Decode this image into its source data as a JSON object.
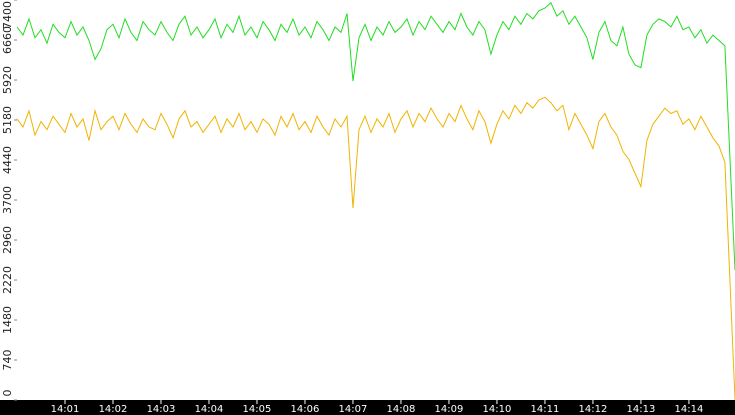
{
  "chart_data": {
    "type": "line",
    "x": [
      0,
      0.125,
      0.25,
      0.375,
      0.5,
      0.625,
      0.75,
      0.875,
      1,
      1.125,
      1.25,
      1.375,
      1.5,
      1.625,
      1.75,
      1.875,
      2,
      2.125,
      2.25,
      2.375,
      2.5,
      2.625,
      2.75,
      2.875,
      3,
      3.125,
      3.25,
      3.375,
      3.5,
      3.625,
      3.75,
      3.875,
      4,
      4.125,
      4.25,
      4.375,
      4.5,
      4.625,
      4.75,
      4.875,
      5,
      5.125,
      5.25,
      5.375,
      5.5,
      5.625,
      5.75,
      5.875,
      6,
      6.125,
      6.25,
      6.375,
      6.5,
      6.625,
      6.75,
      6.875,
      7,
      7.125,
      7.25,
      7.375,
      7.5,
      7.625,
      7.75,
      7.875,
      8,
      8.125,
      8.25,
      8.375,
      8.5,
      8.625,
      8.75,
      8.875,
      9,
      9.125,
      9.25,
      9.375,
      9.5,
      9.625,
      9.75,
      9.875,
      10,
      10.125,
      10.25,
      10.375,
      10.5,
      10.625,
      10.75,
      10.875,
      11,
      11.125,
      11.25,
      11.375,
      11.5,
      11.625,
      11.75,
      11.875,
      12,
      12.125,
      12.25,
      12.375,
      12.5,
      12.625,
      12.75,
      12.875,
      13,
      13.125,
      13.25,
      13.375,
      13.5,
      13.625,
      13.75,
      13.875,
      14,
      14.125,
      14.25,
      14.375,
      14.5,
      14.625,
      14.75,
      14.96
    ],
    "series": [
      {
        "color": "#22dd22",
        "values": [
          6900,
          6750,
          7050,
          6700,
          6850,
          6600,
          6950,
          6800,
          6700,
          7000,
          6750,
          6900,
          6650,
          6300,
          6500,
          6850,
          6950,
          6700,
          7050,
          6800,
          6650,
          7000,
          6850,
          6750,
          7000,
          6800,
          6650,
          6950,
          7100,
          6750,
          6900,
          6700,
          6850,
          7050,
          6700,
          6950,
          6800,
          7100,
          6750,
          6900,
          6700,
          7000,
          6850,
          6650,
          6950,
          6800,
          7050,
          6750,
          6900,
          6700,
          7000,
          6850,
          6650,
          6900,
          6800,
          7150,
          5900,
          6700,
          6950,
          6650,
          6900,
          6750,
          7000,
          6800,
          6900,
          7050,
          6750,
          7000,
          6850,
          7100,
          6950,
          6800,
          7000,
          6850,
          7150,
          6900,
          6750,
          7000,
          6850,
          6400,
          6750,
          7000,
          6850,
          7100,
          6950,
          7150,
          7050,
          7200,
          7250,
          7350,
          7100,
          7200,
          6950,
          7100,
          6900,
          6700,
          6300,
          6800,
          7000,
          6650,
          6550,
          6900,
          6400,
          6200,
          6150,
          6750,
          6950,
          7050,
          7000,
          6900,
          7100,
          6850,
          6900,
          6700,
          6850,
          6600,
          6750,
          6650,
          6550,
          2400
        ]
      },
      {
        "color": "#f0b400",
        "values": [
          5200,
          5050,
          5350,
          4900,
          5150,
          5000,
          5250,
          5100,
          4950,
          5300,
          5050,
          5200,
          4800,
          5350,
          5000,
          5150,
          5250,
          5000,
          5300,
          5100,
          4950,
          5200,
          5050,
          5000,
          5300,
          5100,
          4850,
          5200,
          5350,
          5050,
          5150,
          4950,
          5100,
          5250,
          4950,
          5200,
          5050,
          5300,
          5000,
          5150,
          4950,
          5200,
          5100,
          4900,
          5250,
          5050,
          5300,
          5000,
          5150,
          4950,
          5250,
          5050,
          4900,
          5200,
          5050,
          5250,
          3550,
          5000,
          5250,
          4950,
          5200,
          5050,
          5300,
          4950,
          5200,
          5350,
          5050,
          5300,
          5150,
          5400,
          5200,
          5050,
          5300,
          5150,
          5450,
          5200,
          5000,
          5350,
          5150,
          4750,
          5100,
          5350,
          5200,
          5450,
          5300,
          5500,
          5400,
          5550,
          5600,
          5500,
          5350,
          5450,
          5000,
          5300,
          5100,
          4900,
          4650,
          5150,
          5300,
          5050,
          4900,
          4600,
          4450,
          4200,
          3950,
          4800,
          5100,
          5250,
          5400,
          5300,
          5350,
          5100,
          5200,
          5000,
          5250,
          5050,
          4850,
          4700,
          4400,
          0
        ]
      }
    ],
    "xlim": [
      0,
      14.96
    ],
    "xticks": [
      {
        "value": 1,
        "label": "14:01"
      },
      {
        "value": 2,
        "label": "14:02"
      },
      {
        "value": 3,
        "label": "14:03"
      },
      {
        "value": 4,
        "label": "14:04"
      },
      {
        "value": 5,
        "label": "14:05"
      },
      {
        "value": 6,
        "label": "14:06"
      },
      {
        "value": 7,
        "label": "14:07"
      },
      {
        "value": 8,
        "label": "14:08"
      },
      {
        "value": 9,
        "label": "14:09"
      },
      {
        "value": 10,
        "label": "14:10"
      },
      {
        "value": 11,
        "label": "14:11"
      },
      {
        "value": 12,
        "label": "14:12"
      },
      {
        "value": 13,
        "label": "14:13"
      },
      {
        "value": 14,
        "label": "14:14"
      }
    ],
    "ylim": [
      0,
      7400
    ],
    "yticks": [
      0,
      740,
      1480,
      2220,
      2960,
      3700,
      4440,
      5180,
      5920,
      6660,
      7400
    ]
  }
}
